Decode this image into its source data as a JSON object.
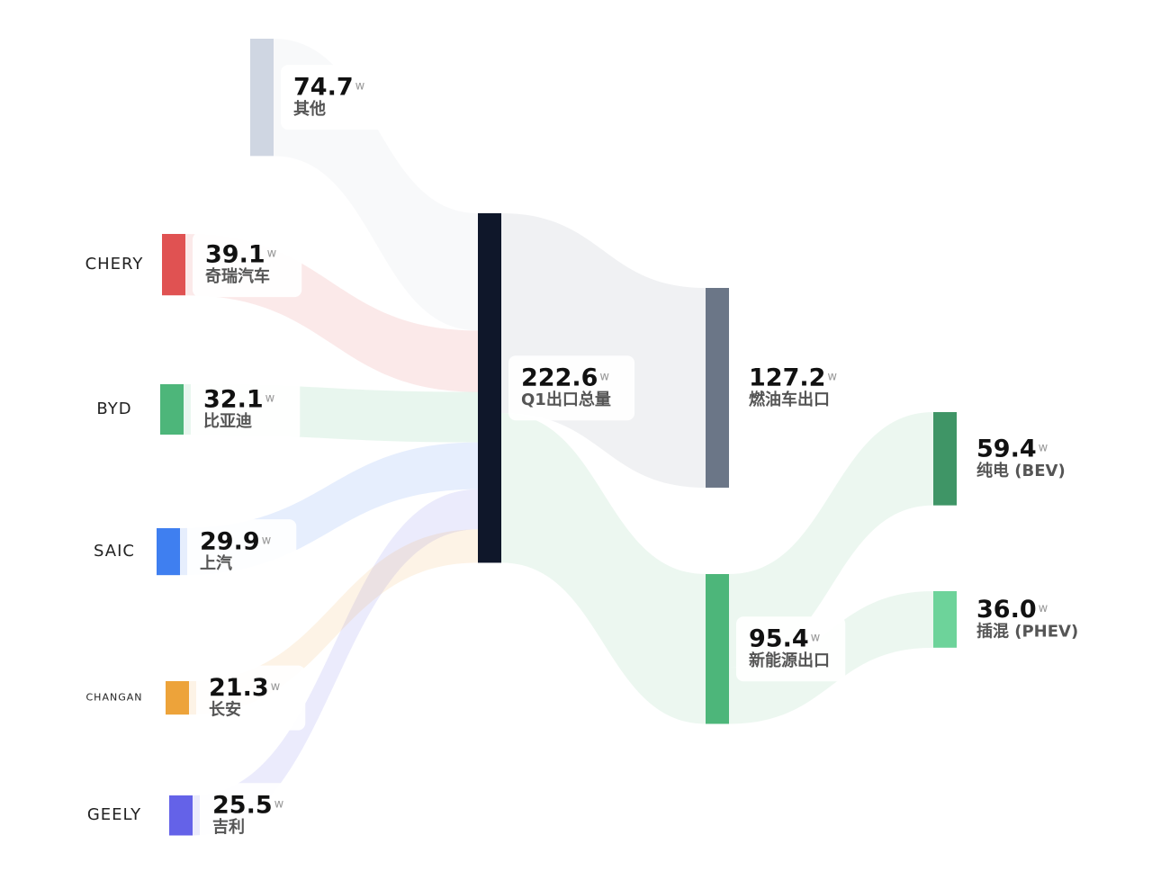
{
  "chart_data": {
    "type": "sankey",
    "unit": "w",
    "nodes": [
      {
        "name": "其他",
        "value": 74.7,
        "color": "#cfd6e2"
      },
      {
        "name": "奇瑞汽车",
        "value": 39.1,
        "color": "#e05252",
        "logo": "CHERY"
      },
      {
        "name": "比亚迪",
        "value": 32.1,
        "color": "#4db67a",
        "logo": "BYD"
      },
      {
        "name": "上汽",
        "value": 29.9,
        "color": "#3f7ff0",
        "logo": "SAIC"
      },
      {
        "name": "长安",
        "value": 21.3,
        "color": "#eda33a",
        "logo": "CHANGAN"
      },
      {
        "name": "吉利",
        "value": 25.5,
        "color": "#6462e8",
        "logo": "GEELY"
      },
      {
        "name": "Q1出口总量",
        "value": 222.6,
        "color": "#0f172a"
      },
      {
        "name": "燃油车出口",
        "value": 127.2,
        "color": "#6b7687"
      },
      {
        "name": "新能源出口",
        "value": 95.4,
        "color": "#4db67a"
      },
      {
        "name": "纯电 (BEV)",
        "value": 59.4,
        "color": "#3f9566"
      },
      {
        "name": "插混 (PHEV)",
        "value": 36,
        "value_label": "36.0",
        "color": "#6dd39a"
      }
    ],
    "links": [
      {
        "source": 0,
        "target": 6,
        "value": 74.7,
        "color": "#c9cfdb"
      },
      {
        "source": 1,
        "target": 6,
        "value": 39.1,
        "color": "#e05252"
      },
      {
        "source": 2,
        "target": 6,
        "value": 32.1,
        "color": "#4db67a"
      },
      {
        "source": 3,
        "target": 6,
        "value": 29.9,
        "color": "#3f7ff0"
      },
      {
        "source": 5,
        "target": 6,
        "value": 25.5,
        "color": "#6462e8"
      },
      {
        "source": 4,
        "target": 6,
        "value": 21.3,
        "color": "#eda33a"
      },
      {
        "source": 6,
        "target": 7,
        "value": 127.2,
        "color": "#8a93a3"
      },
      {
        "source": 6,
        "target": 8,
        "value": 95.4,
        "color": "#6dc08c"
      },
      {
        "source": 8,
        "target": 9,
        "value": 59.4,
        "color": "#6dc08c"
      },
      {
        "source": 8,
        "target": 10,
        "value": 36,
        "color": "#6dc08c"
      }
    ]
  }
}
